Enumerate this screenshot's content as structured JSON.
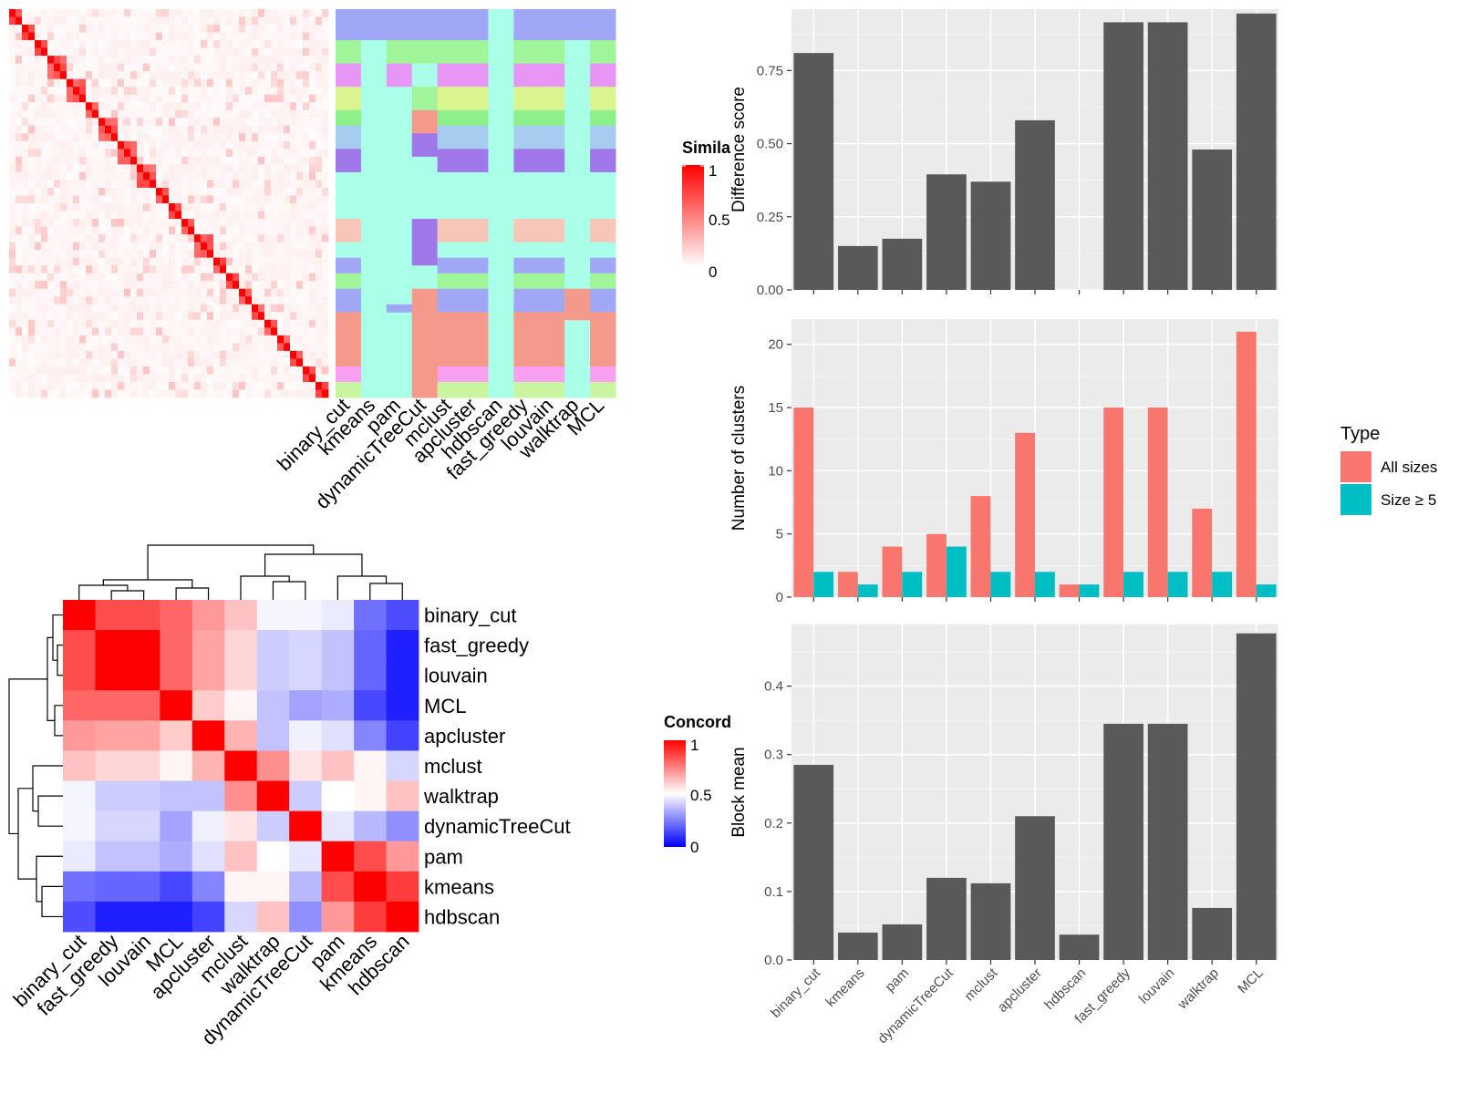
{
  "methods": [
    "binary_cut",
    "kmeans",
    "pam",
    "dynamicTreeCut",
    "mclust",
    "apcluster",
    "hdbscan",
    "fast_greedy",
    "louvain",
    "walktrap",
    "MCL"
  ],
  "similarity_legend": {
    "title": "Simila",
    "ticks": [
      "1",
      "0.5",
      "0"
    ],
    "colors": [
      "#ffffff",
      "#ff0000"
    ]
  },
  "concordance_legend": {
    "title": "Concord",
    "ticks": [
      "1",
      "0.5",
      "0"
    ],
    "colors": [
      "#0000ff",
      "#ffffff",
      "#ff0000"
    ]
  },
  "chart_data": [
    {
      "type": "heatmap",
      "name": "similarity",
      "description_rows": 50,
      "block_sizes": [
        2,
        2,
        2,
        3,
        3,
        2,
        3,
        3,
        3,
        2,
        2,
        2,
        3,
        2,
        2,
        2,
        2,
        2,
        2,
        2,
        2,
        2,
        2,
        2
      ],
      "cluster_palette": [
        "#a0a7f5",
        "#a0f59a",
        "#e896f5",
        "#daf590",
        "#8ef08a",
        "#a6cdf0",
        "#a077e8",
        "#aaffe8",
        "#f8c6b8",
        "#f9a0f0",
        "#f59a8a",
        "#c9f5a0"
      ],
      "column_labels": [
        "binary_cut",
        "kmeans",
        "pam",
        "dynamicTreeCut",
        "mclust",
        "apcluster",
        "hdbscan",
        "fast_greedy",
        "louvain",
        "walktrap",
        "MCL"
      ]
    },
    {
      "type": "bar",
      "categories": [
        "binary_cut",
        "kmeans",
        "pam",
        "dynamicTreeCut",
        "mclust",
        "apcluster",
        "hdbscan",
        "fast_greedy",
        "louvain",
        "walktrap",
        "MCL"
      ],
      "values": [
        0.81,
        0.15,
        0.175,
        0.395,
        0.37,
        0.58,
        0,
        0.915,
        0.915,
        0.48,
        0.945
      ],
      "ylabel": "Difference score",
      "ylim": [
        0,
        0.96
      ],
      "yticks": [
        "0.00",
        "0.25",
        "0.50",
        "0.75"
      ],
      "color": "#595959"
    },
    {
      "type": "bar",
      "categories": [
        "binary_cut",
        "kmeans",
        "pam",
        "dynamicTreeCut",
        "mclust",
        "apcluster",
        "hdbscan",
        "fast_greedy",
        "louvain",
        "walktrap",
        "MCL"
      ],
      "series": [
        {
          "name": "All sizes",
          "values": [
            15,
            2,
            4,
            5,
            8,
            13,
            1,
            15,
            15,
            7,
            21
          ],
          "color": "#f8766d"
        },
        {
          "name": "Size ≥ 5",
          "values": [
            2,
            1,
            2,
            4,
            2,
            2,
            1,
            2,
            2,
            2,
            1
          ],
          "color": "#00bfc4"
        }
      ],
      "legend_title": "Type",
      "ylabel": "Number of clusters",
      "ylim": [
        0,
        22
      ],
      "yticks": [
        "0",
        "5",
        "10",
        "15",
        "20"
      ]
    },
    {
      "type": "bar",
      "categories": [
        "binary_cut",
        "kmeans",
        "pam",
        "dynamicTreeCut",
        "mclust",
        "apcluster",
        "hdbscan",
        "fast_greedy",
        "louvain",
        "walktrap",
        "MCL"
      ],
      "values": [
        0.285,
        0.04,
        0.052,
        0.12,
        0.112,
        0.21,
        0.037,
        0.345,
        0.345,
        0.076,
        0.477
      ],
      "ylabel": "Block mean",
      "ylim": [
        0,
        0.49
      ],
      "yticks": [
        "0.0",
        "0.1",
        "0.2",
        "0.3",
        "0.4"
      ],
      "color": "#595959"
    },
    {
      "type": "heatmap",
      "name": "concordance",
      "labels": [
        "binary_cut",
        "fast_greedy",
        "louvain",
        "MCL",
        "apcluster",
        "mclust",
        "walktrap",
        "dynamicTreeCut",
        "pam",
        "kmeans",
        "hdbscan"
      ],
      "matrix": [
        [
          1.0,
          0.85,
          0.85,
          0.8,
          0.7,
          0.62,
          0.48,
          0.48,
          0.46,
          0.22,
          0.15
        ],
        [
          0.85,
          1.0,
          1.0,
          0.8,
          0.68,
          0.58,
          0.4,
          0.42,
          0.38,
          0.2,
          0.06
        ],
        [
          0.85,
          1.0,
          1.0,
          0.8,
          0.68,
          0.58,
          0.4,
          0.42,
          0.38,
          0.2,
          0.06
        ],
        [
          0.8,
          0.8,
          0.8,
          1.0,
          0.6,
          0.52,
          0.38,
          0.32,
          0.34,
          0.14,
          0.06
        ],
        [
          0.7,
          0.68,
          0.68,
          0.6,
          1.0,
          0.65,
          0.38,
          0.47,
          0.44,
          0.26,
          0.13
        ],
        [
          0.62,
          0.58,
          0.58,
          0.52,
          0.65,
          1.0,
          0.72,
          0.55,
          0.62,
          0.52,
          0.42
        ],
        [
          0.48,
          0.4,
          0.4,
          0.38,
          0.38,
          0.72,
          1.0,
          0.4,
          0.5,
          0.52,
          0.62
        ],
        [
          0.48,
          0.42,
          0.42,
          0.32,
          0.47,
          0.55,
          0.4,
          1.0,
          0.45,
          0.36,
          0.28
        ],
        [
          0.46,
          0.38,
          0.38,
          0.34,
          0.44,
          0.62,
          0.5,
          0.45,
          1.0,
          0.85,
          0.7
        ],
        [
          0.22,
          0.2,
          0.2,
          0.14,
          0.26,
          0.52,
          0.52,
          0.36,
          0.85,
          1.0,
          0.88
        ],
        [
          0.15,
          0.06,
          0.06,
          0.06,
          0.13,
          0.42,
          0.62,
          0.28,
          0.7,
          0.88,
          1.0
        ]
      ]
    }
  ]
}
